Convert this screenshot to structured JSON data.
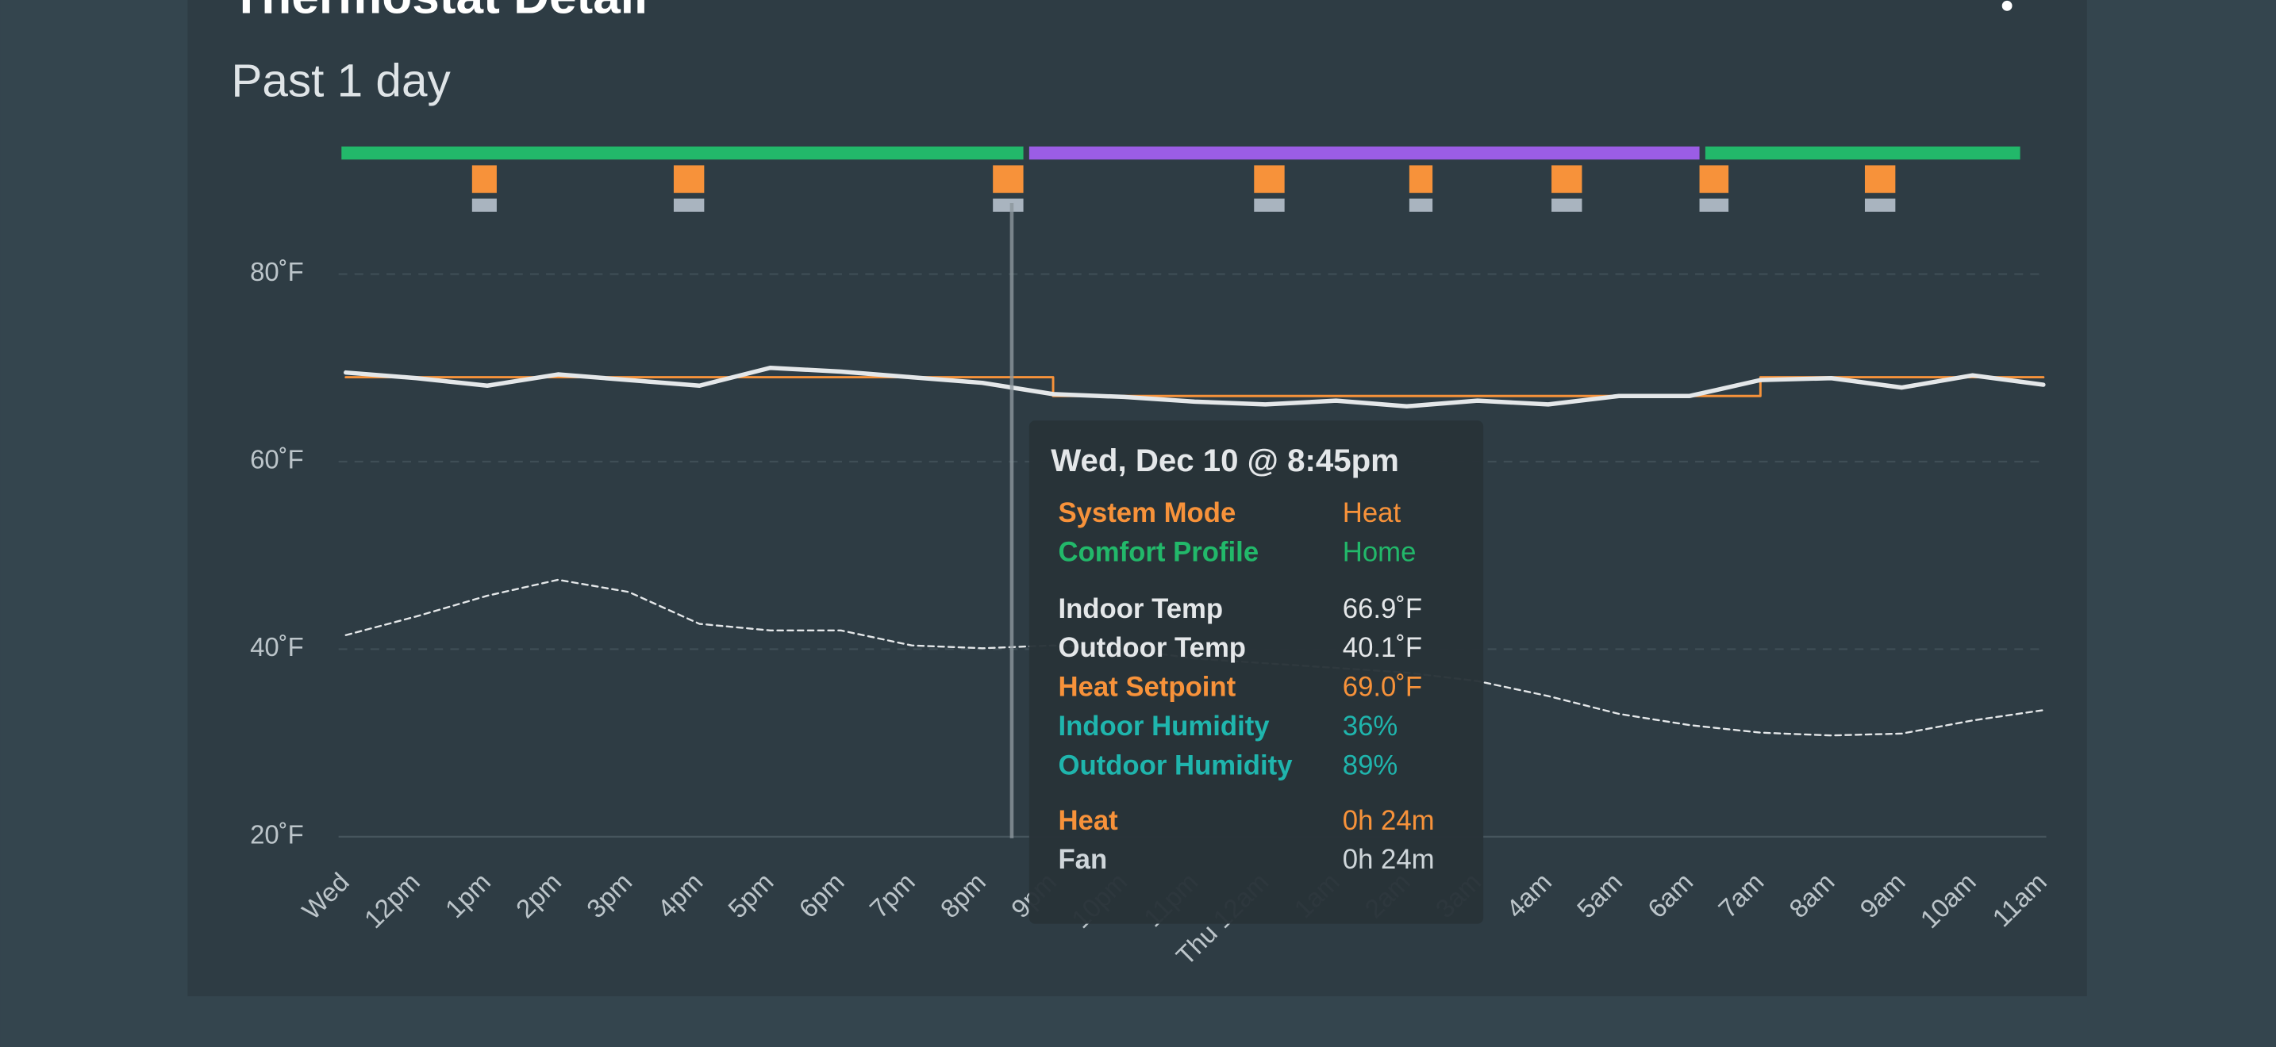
{
  "header": {
    "title": "Thermostat Detail",
    "subtitle": "Past 1 day"
  },
  "chart_data": {
    "type": "line",
    "categories": [
      "Wed",
      "12pm",
      "1pm",
      "2pm",
      "3pm",
      "4pm",
      "5pm",
      "6pm",
      "7pm",
      "8pm",
      "9pm",
      "10pm",
      "11pm",
      "Thu 12am",
      "1am",
      "2am",
      "3am",
      "4am",
      "5am",
      "6am",
      "7am",
      "8am",
      "9am",
      "10am",
      "11am"
    ],
    "ylim": [
      20,
      80
    ],
    "yticks": [
      {
        "value": 20,
        "label": "20˚F"
      },
      {
        "value": 40,
        "label": "40˚F"
      },
      {
        "value": 60,
        "label": "60˚F"
      },
      {
        "value": 80,
        "label": "80˚F"
      }
    ],
    "grid": true,
    "series": [
      {
        "name": "Indoor Temp",
        "color": "#e4e7e9",
        "values": [
          69.5,
          68.9,
          68.1,
          69.3,
          68.7,
          68.1,
          70.0,
          69.6,
          69.0,
          68.4,
          67.2,
          66.9,
          66.4,
          66.1,
          66.5,
          65.9,
          66.5,
          66.1,
          67.0,
          67.0,
          68.7,
          68.9,
          67.9,
          69.2,
          68.2
        ]
      },
      {
        "name": "Heat Setpoint",
        "color": "#f7923a",
        "step": true,
        "values": [
          69,
          69,
          69,
          69,
          69,
          69,
          69,
          69,
          69,
          69,
          67,
          67,
          67,
          67,
          67,
          67,
          67,
          67,
          67,
          67,
          69,
          69,
          69,
          69,
          69
        ]
      },
      {
        "name": "Outdoor Temp",
        "color": "#e4e7e9",
        "dashed": true,
        "values": [
          41.5,
          43.5,
          45.7,
          47.4,
          46.1,
          42.7,
          42.0,
          42.0,
          40.4,
          40.1,
          40.4,
          40.0,
          39.0,
          38.5,
          38.0,
          37.5,
          36.6,
          35.0,
          33.1,
          31.9,
          31.1,
          30.8,
          31.0,
          32.4,
          33.5
        ]
      }
    ]
  },
  "tooltip": {
    "title": "Wed, Dec 10 @ 8:45pm",
    "mode_rows": [
      [
        "System Mode",
        "Heat"
      ],
      [
        "Comfort Profile",
        "Home"
      ]
    ],
    "temp_values": [
      "66.9˚F",
      "40.1˚F",
      "69.0˚F"
    ],
    "humidity_rows": [
      [
        "Indoor Humidity",
        "36%"
      ],
      [
        "Outdoor Humidity",
        "89%"
      ]
    ],
    "runtime_rows": [
      [
        "Heat",
        "0h 24m"
      ],
      [
        "Fan",
        "0h 24m"
      ]
    ]
  }
}
